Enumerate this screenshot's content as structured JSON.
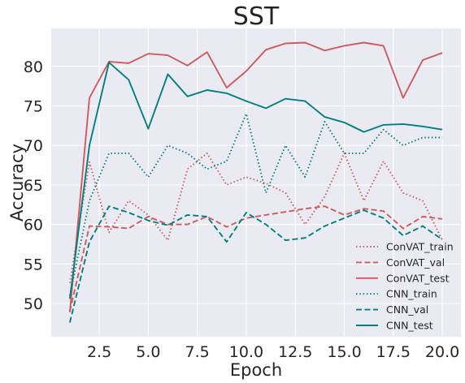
{
  "chart_data": {
    "type": "line",
    "title": "SST",
    "xlabel": "Epoch",
    "ylabel": "Accuracy",
    "xlim": [
      0.05,
      20.95
    ],
    "ylim": [
      45.8,
      84.8
    ],
    "xticks": [
      2.5,
      5.0,
      7.5,
      10.0,
      12.5,
      15.0,
      17.5,
      20.0
    ],
    "xtick_labels": [
      "2.5",
      "5.0",
      "7.5",
      "10.0",
      "12.5",
      "15.0",
      "17.5",
      "20.0"
    ],
    "yticks": [
      50,
      55,
      60,
      65,
      70,
      75,
      80
    ],
    "ytick_labels": [
      "50",
      "55",
      "60",
      "65",
      "70",
      "75",
      "80"
    ],
    "grid": true,
    "legend_position": "lower-right",
    "x": [
      1,
      2,
      3,
      4,
      5,
      6,
      7,
      8,
      9,
      10,
      11,
      12,
      13,
      14,
      15,
      16,
      17,
      18,
      19,
      20
    ],
    "series": [
      {
        "name": "ConVAT_train",
        "color": "#cd5c5c",
        "dash": "dotted",
        "values": [
          52.6,
          67.9,
          59.0,
          63.0,
          61.2,
          58.0,
          67.0,
          69.0,
          65.0,
          66.0,
          65.2,
          64.0,
          60.0,
          63.5,
          69.0,
          63.0,
          68.0,
          64.0,
          63.0,
          58.0
        ]
      },
      {
        "name": "ConVAT_val",
        "color": "#cd5c5c",
        "dash": "dashed",
        "values": [
          49.0,
          59.8,
          59.7,
          59.5,
          61.0,
          60.0,
          60.0,
          61.0,
          59.7,
          60.8,
          61.2,
          61.6,
          62.0,
          62.3,
          61.2,
          62.0,
          61.7,
          59.5,
          61.0,
          60.7
        ]
      },
      {
        "name": "ConVAT_test",
        "color": "#cd5c5c",
        "dash": "solid",
        "values": [
          48.9,
          76.0,
          80.6,
          80.4,
          81.6,
          81.4,
          80.1,
          81.8,
          77.3,
          79.4,
          82.1,
          82.9,
          83.0,
          82.0,
          82.6,
          83.0,
          82.6,
          76.0,
          80.8,
          81.7
        ]
      },
      {
        "name": "CNN_train",
        "color": "#008080",
        "dash": "dotted",
        "values": [
          51.0,
          63.0,
          69.0,
          69.0,
          66.0,
          70.0,
          69.0,
          67.0,
          68.0,
          74.0,
          64.0,
          70.0,
          66.0,
          73.0,
          69.0,
          69.0,
          72.0,
          70.0,
          71.0,
          71.0
        ]
      },
      {
        "name": "CNN_val",
        "color": "#008080",
        "dash": "dashed",
        "values": [
          47.6,
          57.8,
          62.3,
          61.5,
          60.5,
          59.9,
          61.2,
          61.0,
          57.8,
          61.5,
          60.0,
          58.0,
          58.3,
          59.8,
          60.8,
          61.8,
          60.8,
          58.6,
          59.8,
          58.1
        ]
      },
      {
        "name": "CNN_test",
        "color": "#008080",
        "dash": "solid",
        "values": [
          50.6,
          70.0,
          80.5,
          78.3,
          72.1,
          79.0,
          76.2,
          77.0,
          76.6,
          75.6,
          74.7,
          75.9,
          75.6,
          73.6,
          72.9,
          71.7,
          72.6,
          72.7,
          72.4,
          72.0
        ]
      }
    ]
  }
}
